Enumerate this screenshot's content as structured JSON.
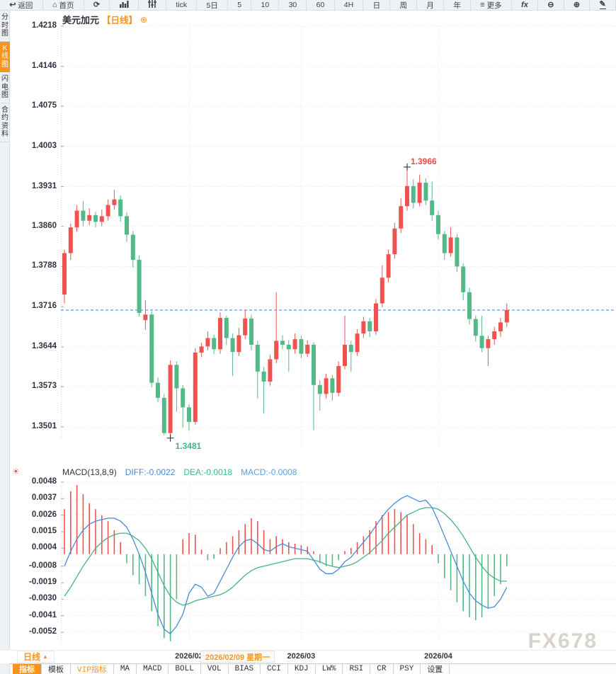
{
  "header": {
    "symbol": "美元加元",
    "period_tag": "【日线】"
  },
  "toolbar": {
    "items": [
      {
        "name": "back-button",
        "icon": "back-icon",
        "label": "返回"
      },
      {
        "name": "home-button",
        "icon": "home-icon",
        "label": "首页"
      },
      {
        "name": "refresh-button",
        "icon": "refresh-icon",
        "label": ""
      },
      {
        "name": "bar-chart-button",
        "icon": "bars-icon",
        "label": ""
      },
      {
        "name": "indicator-style-button",
        "icon": "sliders-icon",
        "label": ""
      },
      {
        "name": "period-tick-button",
        "label": "tick"
      },
      {
        "name": "period-5d-button",
        "label": "5日"
      },
      {
        "name": "period-5-button",
        "label": "5"
      },
      {
        "name": "period-10-button",
        "label": "10"
      },
      {
        "name": "period-30-button",
        "label": "30"
      },
      {
        "name": "period-60-button",
        "label": "60"
      },
      {
        "name": "period-4h-button",
        "label": "4H"
      },
      {
        "name": "period-day-button",
        "label": "日"
      },
      {
        "name": "period-week-button",
        "label": "周"
      },
      {
        "name": "period-month-button",
        "label": "月"
      },
      {
        "name": "period-year-button",
        "label": "年"
      },
      {
        "name": "more-button",
        "icon": "menu-icon",
        "label": "更多"
      },
      {
        "name": "fx-button",
        "icon": "fx-icon",
        "label": ""
      },
      {
        "name": "zoom-out-button",
        "icon": "zoom-out-icon",
        "label": ""
      },
      {
        "name": "zoom-in-button",
        "icon": "zoom-in-icon",
        "label": ""
      },
      {
        "name": "draw-button",
        "icon": "draw-icon",
        "label": ""
      }
    ]
  },
  "icons": {
    "back-icon": "↩",
    "home-icon": "⌂",
    "refresh-icon": "⟳",
    "menu-icon": "≡",
    "fx-icon": "fx",
    "zoom-out-icon": "⊖",
    "zoom-in-icon": "⊕",
    "draw-icon": "✎",
    "macd-settings-icon": "☀",
    "add-icon": "⊕",
    "dropdown-up-icon": "▲"
  },
  "sidebar": {
    "items": [
      {
        "name": "sidebar-item-time-chart",
        "label": "分时图",
        "active": false
      },
      {
        "name": "sidebar-item-kline-chart",
        "label": "K线图",
        "active": true
      },
      {
        "name": "sidebar-item-lightning-chart",
        "label": "闪电图",
        "active": false
      },
      {
        "name": "sidebar-item-contract-info",
        "label": "合约资料",
        "active": false
      }
    ]
  },
  "macd_header": {
    "title": "MACD(13,8,9)",
    "diff": "DIFF:-0.0022",
    "dea": "DEA:-0.0018",
    "macd": "MACD:-0.0008"
  },
  "period_selector": {
    "label": "日线"
  },
  "x_axis": {
    "highlight": "2026/02/09 星期一"
  },
  "bottom_tabs": [
    {
      "name": "tab-indicators",
      "label": "指标",
      "state": "active"
    },
    {
      "name": "tab-templates",
      "label": "模板",
      "state": "normal"
    },
    {
      "name": "tab-vip-indicators",
      "label": "VIP指标",
      "state": "vip"
    },
    {
      "name": "tab-ma",
      "label": "MA",
      "state": "normal"
    },
    {
      "name": "tab-macd",
      "label": "MACD",
      "state": "normal"
    },
    {
      "name": "tab-boll",
      "label": "BOLL",
      "state": "normal"
    },
    {
      "name": "tab-vol",
      "label": "VOL",
      "state": "normal"
    },
    {
      "name": "tab-bias",
      "label": "BIAS",
      "state": "normal"
    },
    {
      "name": "tab-cci",
      "label": "CCI",
      "state": "normal"
    },
    {
      "name": "tab-kdj",
      "label": "KDJ",
      "state": "normal"
    },
    {
      "name": "tab-lwr",
      "label": "LW%",
      "state": "normal"
    },
    {
      "name": "tab-rsi",
      "label": "RSI",
      "state": "normal"
    },
    {
      "name": "tab-cr",
      "label": "CR",
      "state": "normal"
    },
    {
      "name": "tab-psy",
      "label": "PSY",
      "state": "normal"
    },
    {
      "name": "tab-settings",
      "label": "设置",
      "state": "normal"
    }
  ],
  "watermark": "FX678",
  "colors": {
    "accent_orange": "#f7941e",
    "candle_up": "#ef5350",
    "candle_down": "#53b987",
    "diff_line": "#4a8ad4",
    "dea_line": "#44b385",
    "dashed_price_line": "#2f7fed",
    "high_label": "#f04848",
    "low_label": "#3cb68c"
  },
  "chart_data": {
    "type": "candlestick",
    "title": "美元加元【日线】",
    "symbol": "USD/CAD",
    "period": "daily",
    "price_axis": {
      "ticks": [
        1.4218,
        1.4146,
        1.4075,
        1.4003,
        1.3931,
        1.386,
        1.3788,
        1.3716,
        1.3644,
        1.3573,
        1.3501
      ],
      "min": 1.3501,
      "max": 1.4218
    },
    "current_price_line": 1.371,
    "months": [
      {
        "label": "2026/02",
        "index": 20
      },
      {
        "label": "2026/03",
        "index": 38
      },
      {
        "label": "2026/04",
        "index": 60
      }
    ],
    "annotations": {
      "high": {
        "index": 55,
        "price": 1.3966,
        "label": "1.3966"
      },
      "low": {
        "index": 17,
        "price": 1.3481,
        "label": "1.3481"
      }
    },
    "candles": [
      [
        1.3738,
        1.3818,
        1.3722,
        1.3812
      ],
      [
        1.3812,
        1.3865,
        1.38,
        1.3858
      ],
      [
        1.3858,
        1.3898,
        1.385,
        1.3888
      ],
      [
        1.3888,
        1.3905,
        1.386,
        1.387
      ],
      [
        1.387,
        1.3892,
        1.3862,
        1.388
      ],
      [
        1.388,
        1.3886,
        1.3858,
        1.3868
      ],
      [
        1.3868,
        1.389,
        1.386,
        1.3878
      ],
      [
        1.3878,
        1.3908,
        1.387,
        1.3898
      ],
      [
        1.3898,
        1.3925,
        1.389,
        1.3908
      ],
      [
        1.3908,
        1.3915,
        1.3868,
        1.3878
      ],
      [
        1.3878,
        1.3885,
        1.3832,
        1.3845
      ],
      [
        1.3845,
        1.3852,
        1.3786,
        1.38
      ],
      [
        1.38,
        1.3808,
        1.3698,
        1.3705
      ],
      [
        1.3692,
        1.3728,
        1.3675,
        1.3702
      ],
      [
        1.3702,
        1.3708,
        1.3572,
        1.358
      ],
      [
        1.358,
        1.359,
        1.3545,
        1.3553
      ],
      [
        1.3553,
        1.356,
        1.3486,
        1.349
      ],
      [
        1.349,
        1.362,
        1.3481,
        1.3612
      ],
      [
        1.3612,
        1.3618,
        1.3528,
        1.357
      ],
      [
        1.357,
        1.3576,
        1.35,
        1.3536
      ],
      [
        1.3536,
        1.3542,
        1.3494,
        1.351
      ],
      [
        1.351,
        1.3642,
        1.3505,
        1.3634
      ],
      [
        1.3634,
        1.3652,
        1.3626,
        1.3645
      ],
      [
        1.3645,
        1.3672,
        1.3638,
        1.366
      ],
      [
        1.366,
        1.3666,
        1.3632,
        1.364
      ],
      [
        1.364,
        1.3706,
        1.3632,
        1.3696
      ],
      [
        1.3696,
        1.37,
        1.3648,
        1.366
      ],
      [
        1.366,
        1.3668,
        1.3592,
        1.3635
      ],
      [
        1.3635,
        1.3678,
        1.3628,
        1.3665
      ],
      [
        1.3665,
        1.371,
        1.3658,
        1.3695
      ],
      [
        1.3695,
        1.3702,
        1.3638,
        1.3648
      ],
      [
        1.3648,
        1.3655,
        1.3552,
        1.36
      ],
      [
        1.36,
        1.3608,
        1.3525,
        1.3582
      ],
      [
        1.3582,
        1.363,
        1.3575,
        1.3622
      ],
      [
        1.3622,
        1.3742,
        1.3615,
        1.3655
      ],
      [
        1.3655,
        1.3665,
        1.364,
        1.3648
      ],
      [
        1.3648,
        1.3656,
        1.36,
        1.364
      ],
      [
        1.364,
        1.3668,
        1.3632,
        1.3658
      ],
      [
        1.3658,
        1.3664,
        1.3624,
        1.3632
      ],
      [
        1.3632,
        1.3656,
        1.3626,
        1.3648
      ],
      [
        1.3648,
        1.3652,
        1.3495,
        1.3576
      ],
      [
        1.3576,
        1.3584,
        1.353,
        1.356
      ],
      [
        1.356,
        1.3596,
        1.3552,
        1.3588
      ],
      [
        1.3588,
        1.3594,
        1.3548,
        1.3562
      ],
      [
        1.3562,
        1.3618,
        1.3556,
        1.361
      ],
      [
        1.361,
        1.37,
        1.3604,
        1.3648
      ],
      [
        1.3648,
        1.3655,
        1.36,
        1.3635
      ],
      [
        1.3635,
        1.3676,
        1.3628,
        1.3668
      ],
      [
        1.3668,
        1.3698,
        1.366,
        1.369
      ],
      [
        1.369,
        1.3696,
        1.3662,
        1.3672
      ],
      [
        1.3672,
        1.373,
        1.3666,
        1.3722
      ],
      [
        1.3722,
        1.379,
        1.3715,
        1.3768
      ],
      [
        1.3768,
        1.3818,
        1.376,
        1.381
      ],
      [
        1.381,
        1.3866,
        1.3802,
        1.3856
      ],
      [
        1.3856,
        1.391,
        1.3848,
        1.3896
      ],
      [
        1.3896,
        1.3966,
        1.3888,
        1.3932
      ],
      [
        1.3932,
        1.3944,
        1.3892,
        1.3902
      ],
      [
        1.3902,
        1.3952,
        1.3896,
        1.3938
      ],
      [
        1.3938,
        1.3946,
        1.3898,
        1.3906
      ],
      [
        1.3906,
        1.394,
        1.387,
        1.388
      ],
      [
        1.388,
        1.3888,
        1.3836,
        1.3846
      ],
      [
        1.3846,
        1.3852,
        1.38,
        1.3812
      ],
      [
        1.3812,
        1.3858,
        1.3806,
        1.384
      ],
      [
        1.384,
        1.3846,
        1.3778,
        1.3788
      ],
      [
        1.3788,
        1.3794,
        1.3728,
        1.3742
      ],
      [
        1.3742,
        1.375,
        1.3684,
        1.3694
      ],
      [
        1.3694,
        1.37,
        1.3654,
        1.3664
      ],
      [
        1.3664,
        1.37,
        1.3635,
        1.3642
      ],
      [
        1.3642,
        1.3664,
        1.361,
        1.3658
      ],
      [
        1.3658,
        1.368,
        1.3648,
        1.3672
      ],
      [
        1.3672,
        1.3696,
        1.3662,
        1.3688
      ],
      [
        1.3688,
        1.3722,
        1.368,
        1.371
      ]
    ],
    "macd": {
      "params": "13,8,9",
      "axis_ticks": [
        0.0048,
        0.0037,
        0.0026,
        0.0015,
        0.0004,
        -0.0008,
        -0.0019,
        -0.003,
        -0.0041,
        -0.0052
      ],
      "diff": [
        -0.0008,
        0.0002,
        0.001,
        0.0016,
        0.002,
        0.0022,
        0.0023,
        0.0024,
        0.0024,
        0.0022,
        0.0018,
        0.001,
        0.0,
        -0.0012,
        -0.0026,
        -0.004,
        -0.005,
        -0.0053,
        -0.0048,
        -0.004,
        -0.0026,
        -0.002,
        -0.0022,
        -0.0028,
        -0.0026,
        -0.0018,
        -0.001,
        -0.0002,
        0.0005,
        0.0009,
        0.001,
        0.0007,
        0.0003,
        0.0002,
        0.0005,
        0.0007,
        0.0005,
        0.0004,
        0.0003,
        0.0002,
        -0.0004,
        -0.001,
        -0.0013,
        -0.0013,
        -0.001,
        -0.0005,
        -0.0002,
        0.0003,
        0.0008,
        0.0013,
        0.0019,
        0.0025,
        0.003,
        0.0034,
        0.0037,
        0.0039,
        0.0037,
        0.0035,
        0.0036,
        0.0031,
        0.0022,
        0.0012,
        0.0002,
        -0.0008,
        -0.0018,
        -0.0026,
        -0.0031,
        -0.0034,
        -0.0036,
        -0.0035,
        -0.003,
        -0.0022
      ],
      "dea": [
        -0.0028,
        -0.0022,
        -0.0015,
        -0.0008,
        -0.0002,
        0.0004,
        0.0008,
        0.0011,
        0.0013,
        0.0014,
        0.0014,
        0.0012,
        0.0009,
        0.0004,
        -0.0003,
        -0.0012,
        -0.0021,
        -0.0028,
        -0.0032,
        -0.0034,
        -0.0033,
        -0.0031,
        -0.003,
        -0.0029,
        -0.0028,
        -0.0027,
        -0.0025,
        -0.0022,
        -0.0018,
        -0.0014,
        -0.0011,
        -0.0009,
        -0.0008,
        -0.0007,
        -0.0006,
        -0.0005,
        -0.0004,
        -0.0003,
        -0.0003,
        -0.0003,
        -0.0004,
        -0.0005,
        -0.0007,
        -0.0008,
        -0.0009,
        -0.0008,
        -0.0007,
        -0.0005,
        -0.0002,
        0.0001,
        0.0005,
        0.0009,
        0.0014,
        0.0018,
        0.0022,
        0.0026,
        0.0028,
        0.003,
        0.0031,
        0.0031,
        0.003,
        0.0027,
        0.0023,
        0.0018,
        0.0012,
        0.0005,
        -0.0002,
        -0.0008,
        -0.0013,
        -0.0016,
        -0.0018,
        -0.0018
      ],
      "hist": [
        0.003,
        0.0042,
        0.0046,
        0.004,
        0.0034,
        0.003,
        0.0026,
        0.0022,
        0.0016,
        0.0008,
        -0.0006,
        -0.0014,
        -0.002,
        -0.0028,
        -0.0038,
        -0.0048,
        -0.0056,
        -0.0058,
        -0.003,
        0.001,
        0.0014,
        0.0013,
        0.0003,
        -0.0004,
        -0.0003,
        0.0004,
        0.0008,
        0.0012,
        0.0016,
        0.002,
        0.0024,
        0.0022,
        0.0016,
        0.001,
        0.0012,
        0.001,
        0.0008,
        0.0007,
        0.0006,
        0.0005,
        0.0002,
        -0.0006,
        -0.0008,
        -0.0008,
        -0.0004,
        0.0002,
        0.0004,
        0.0008,
        0.0012,
        0.0016,
        0.0022,
        0.0026,
        0.0028,
        0.003,
        0.0028,
        0.0026,
        0.002,
        0.0014,
        0.001,
        0.0006,
        -0.0006,
        -0.0016,
        -0.0024,
        -0.0032,
        -0.0038,
        -0.0042,
        -0.0044,
        -0.0042,
        -0.0036,
        -0.0028,
        -0.002,
        -0.0008
      ]
    }
  }
}
